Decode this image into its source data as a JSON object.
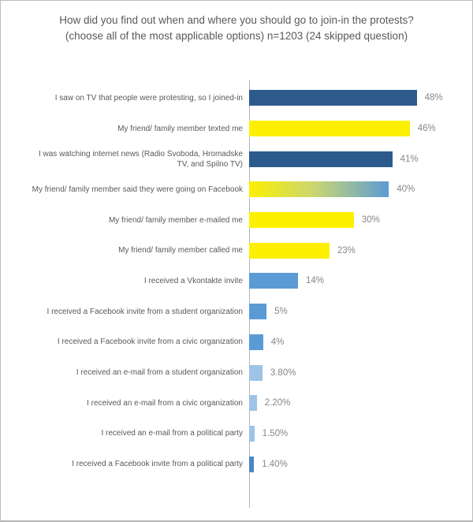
{
  "title": "How did you find out when and where you should go to join-in the protests? (choose all of the most applicable options) n=1203 (24 skipped question)",
  "chart_data": {
    "type": "bar",
    "orientation": "horizontal",
    "title": "How did you find out when and where you should go to join-in the protests? (choose all of the most applicable options) n=1203 (24 skipped question)",
    "xlabel": "",
    "ylabel": "",
    "xlim": [
      0,
      62
    ],
    "grid": false,
    "legend": false,
    "sample_note": "n=1203 (24 skipped question)",
    "categories": [
      "I saw on TV that people were protesting, so I joined-in",
      "My friend/ family member texted me",
      "I was watching internet news (Radio Svoboda, Hromadske TV, and Spilno TV)",
      "My friend/ family member said they were going on Facebook",
      "My friend/ family member e-mailed me",
      "My friend/ family member called me",
      "I received a Vkontakte invite",
      "I received a Facebook invite from a student organization",
      "I received a Facebook invite from a civic organization",
      "I received an e-mail from a student organization",
      "I received an e-mail from a civic organization",
      "I received an e-mail from a political party",
      "I received a Facebook invite from a political party"
    ],
    "values": [
      48,
      46,
      41,
      40,
      30,
      23,
      14,
      5,
      4,
      3.8,
      2.2,
      1.5,
      1.4
    ],
    "value_labels": [
      "48%",
      "46%",
      "41%",
      "40%",
      "30%",
      "23%",
      "14%",
      "5%",
      "4%",
      "3.80%",
      "2.20%",
      "1.50%",
      "1.40%"
    ],
    "bar_colors": [
      "#2C5A8C",
      "#FCF000",
      "#2C5A8C",
      "gradient",
      "#FCF000",
      "#FCF000",
      "#5B9BD5",
      "#5B9BD5",
      "#5B9BD5",
      "#9DC3E6",
      "#9DC3E6",
      "#9DC3E6",
      "#4A86C6"
    ]
  },
  "colors": {
    "dark_blue": "#2C5A8C",
    "yellow": "#FCF000",
    "medium_blue": "#5B9BD5",
    "light_blue": "#9DC3E6",
    "deep_blue": "#4A86C6",
    "gradient_from": "#FCF000",
    "gradient_mid": "#C8D575",
    "gradient_to": "#5B9BD5",
    "axis_line": "#b0b5ba",
    "text_gray": "#58595b",
    "value_gray": "#848689"
  }
}
